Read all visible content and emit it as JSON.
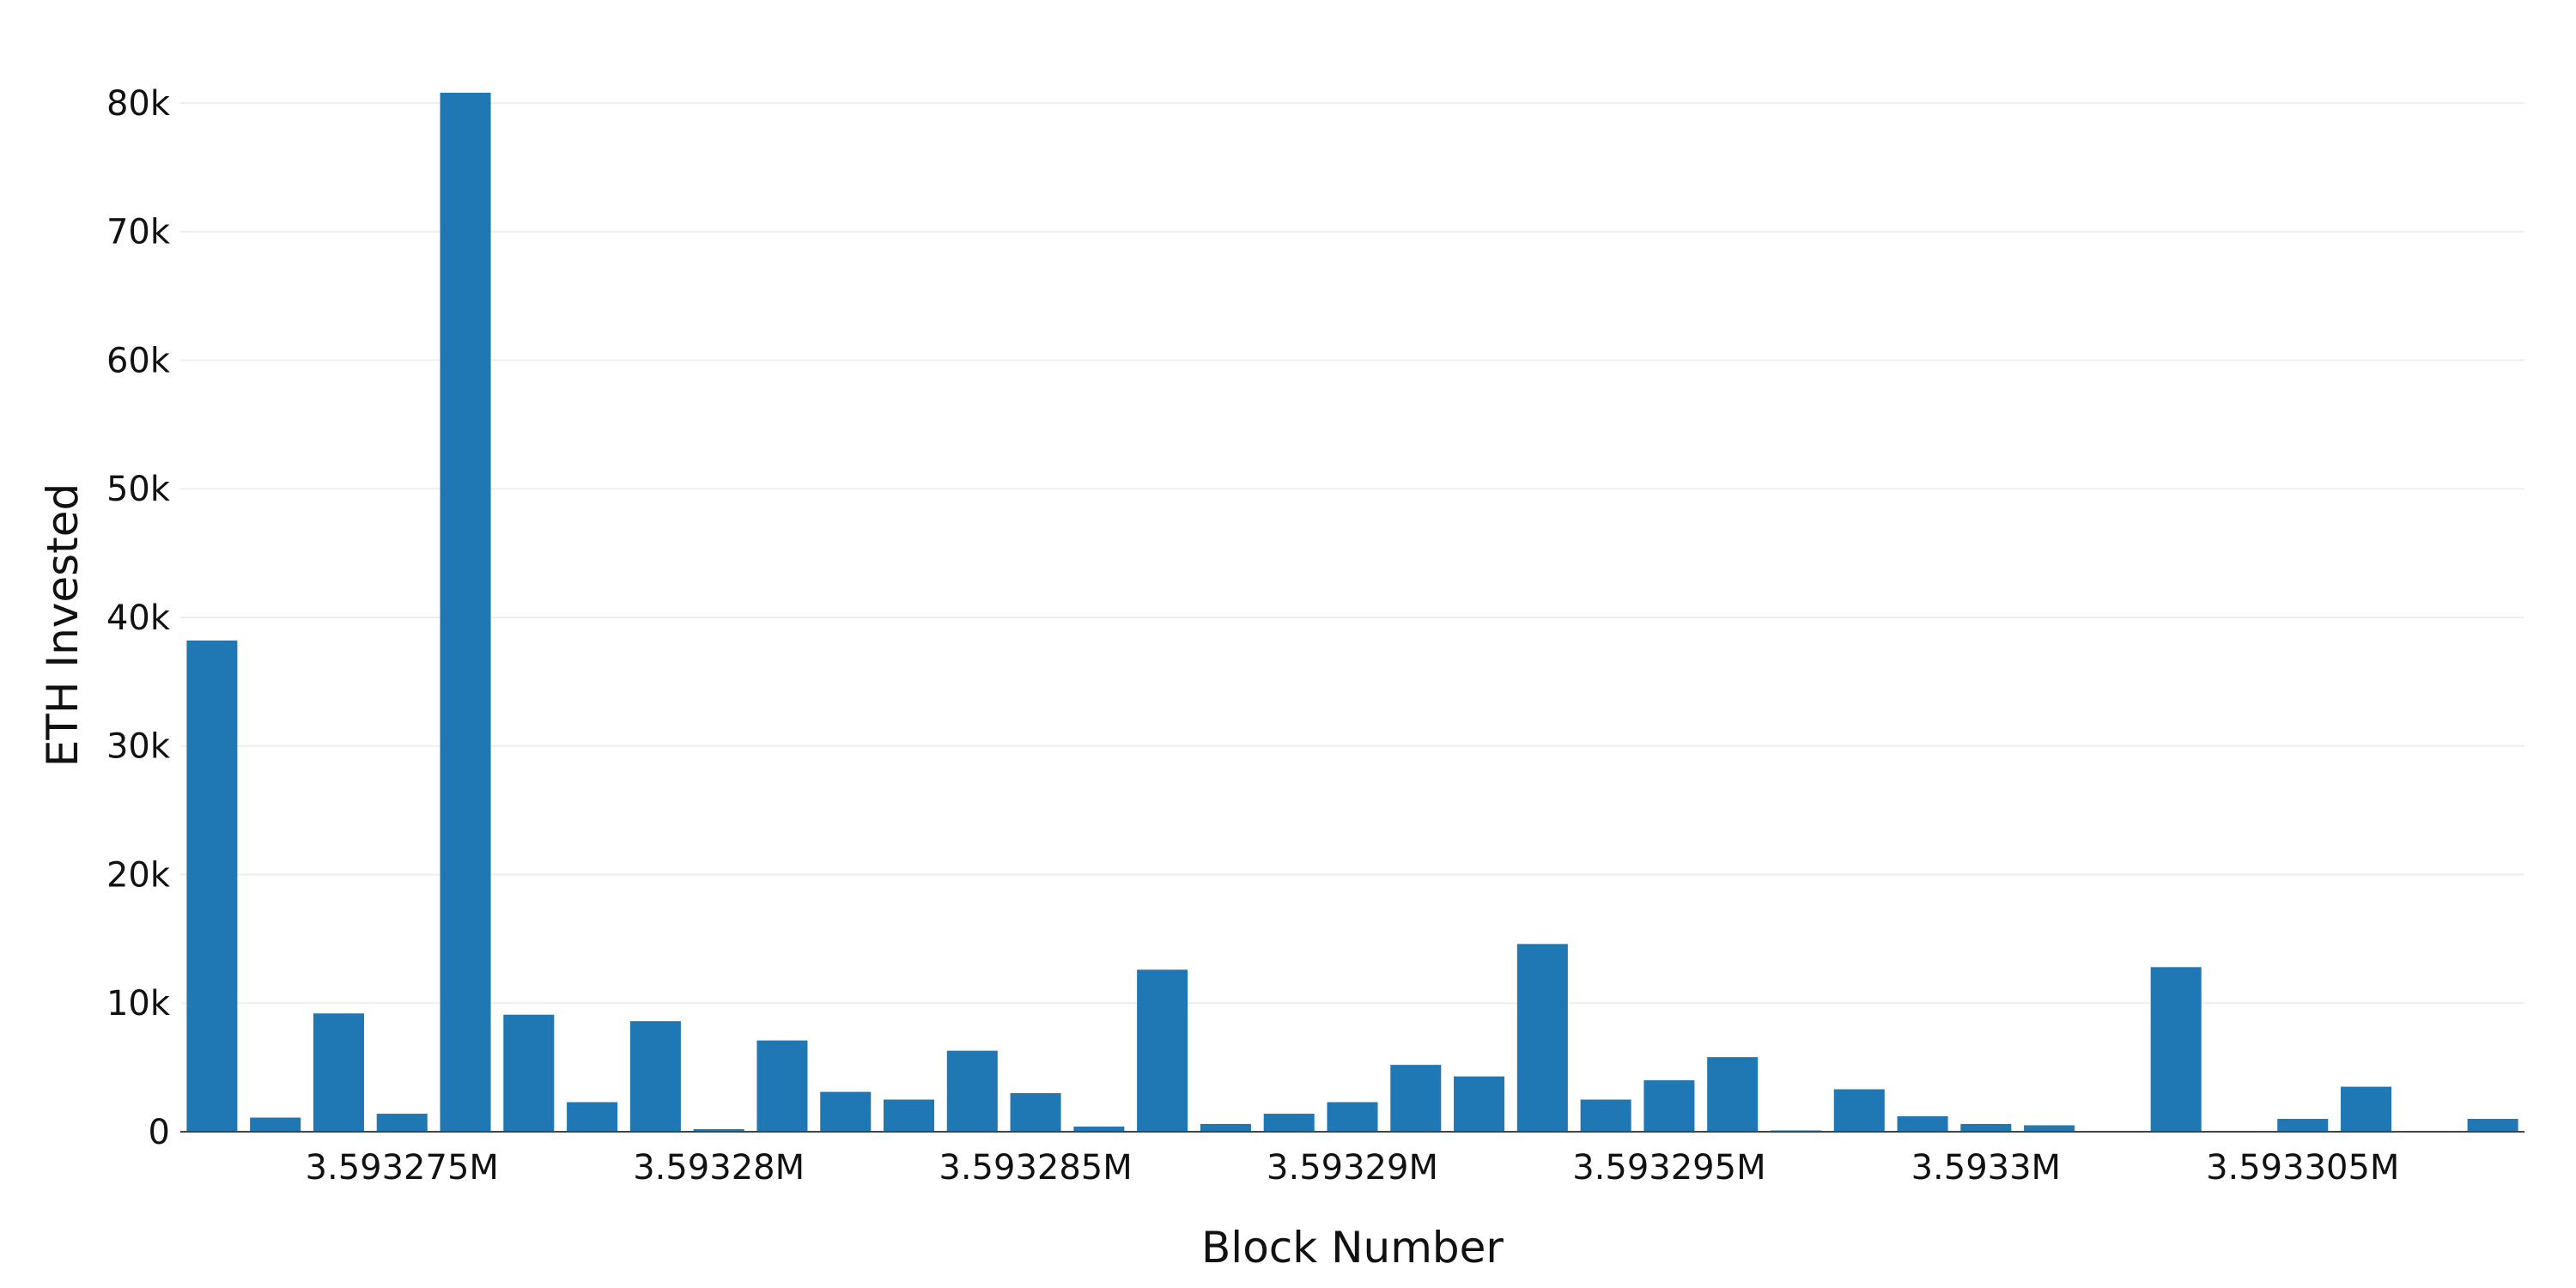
{
  "chart_data": {
    "type": "bar",
    "title": "",
    "xlabel": "Block Number",
    "ylabel": "ETH Invested",
    "bar_color": "#1f77b4",
    "grid": true,
    "legend": "none",
    "xlim": [
      3593271.5,
      3593308.5
    ],
    "ylim": [
      0,
      82000
    ],
    "x_ticks": [
      {
        "value": 3593275,
        "label": "3.593275M"
      },
      {
        "value": 3593280,
        "label": "3.59328M"
      },
      {
        "value": 3593285,
        "label": "3.593285M"
      },
      {
        "value": 3593290,
        "label": "3.59329M"
      },
      {
        "value": 3593295,
        "label": "3.593295M"
      },
      {
        "value": 3593300,
        "label": "3.5933M"
      },
      {
        "value": 3593305,
        "label": "3.593305M"
      }
    ],
    "y_ticks": [
      {
        "value": 0,
        "label": "0"
      },
      {
        "value": 10000,
        "label": "10k"
      },
      {
        "value": 20000,
        "label": "20k"
      },
      {
        "value": 30000,
        "label": "30k"
      },
      {
        "value": 40000,
        "label": "40k"
      },
      {
        "value": 50000,
        "label": "50k"
      },
      {
        "value": 60000,
        "label": "60k"
      },
      {
        "value": 70000,
        "label": "70k"
      },
      {
        "value": 80000,
        "label": "80k"
      }
    ],
    "x": [
      3593272,
      3593273,
      3593274,
      3593275,
      3593276,
      3593277,
      3593278,
      3593279,
      3593280,
      3593281,
      3593282,
      3593283,
      3593284,
      3593285,
      3593286,
      3593287,
      3593288,
      3593289,
      3593290,
      3593291,
      3593292,
      3593293,
      3593294,
      3593295,
      3593296,
      3593297,
      3593298,
      3593299,
      3593300,
      3593301,
      3593302,
      3593303,
      3593304,
      3593305,
      3593306,
      3593307,
      3593308
    ],
    "values": [
      38200,
      1100,
      9200,
      1400,
      80800,
      9100,
      2300,
      8600,
      200,
      7100,
      3100,
      2500,
      6300,
      3000,
      400,
      12600,
      600,
      1400,
      2300,
      5200,
      4300,
      14600,
      2500,
      4000,
      5800,
      100,
      3300,
      1200,
      600,
      500,
      0,
      12800,
      0,
      1000,
      3500,
      0,
      1000
    ]
  }
}
